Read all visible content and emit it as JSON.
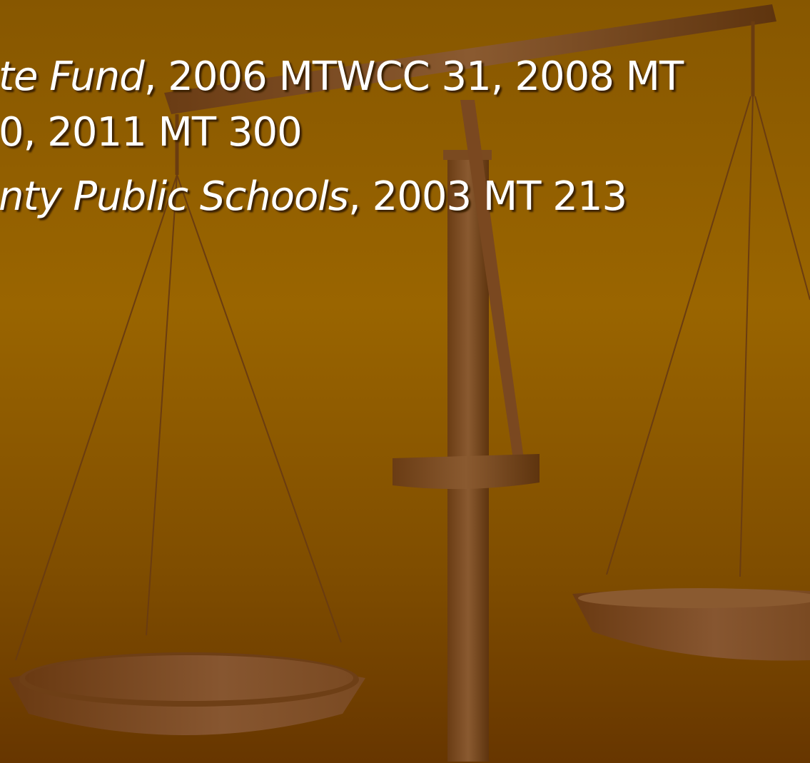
{
  "citations": [
    {
      "case_name": "te Fund",
      "cite": ", 2006 MTWCC 31, 2008 MT",
      "continuation": "0, 2011 MT 300"
    },
    {
      "case_name": "nty Public Schools",
      "cite": ", 2003 MT 213"
    }
  ]
}
